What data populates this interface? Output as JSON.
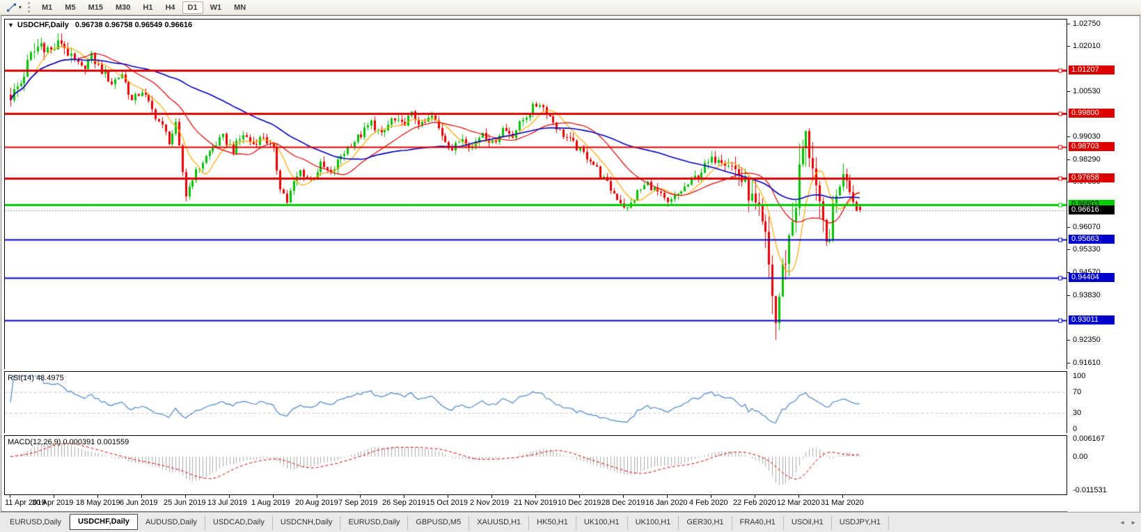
{
  "toolbar": {
    "timeframes": [
      "M1",
      "M5",
      "M15",
      "M30",
      "H1",
      "H4",
      "D1",
      "W1",
      "MN"
    ],
    "active_timeframe": "D1",
    "dropdown_caret": "▾"
  },
  "chart": {
    "symbol": "USDCHF,Daily",
    "ohlc": "0.96738 0.96758 0.96549 0.96616",
    "collapse_arrow": "▼"
  },
  "chart_data": {
    "type": "candlestick",
    "symbol": "USDCHF",
    "timeframe": "Daily",
    "open": 0.96738,
    "high": 0.96758,
    "low": 0.96549,
    "close": 0.96616,
    "candle_up_color": "#00c000",
    "candle_down_color": "#ee0000",
    "price_axis_labels": [
      "1.02750",
      "1.02010",
      "1.00530",
      "0.99030",
      "0.98290",
      "0.97550",
      "0.96070",
      "0.95330",
      "0.94570",
      "0.93830",
      "0.92350",
      "0.91610"
    ],
    "date_labels": [
      "11 Apr 2019",
      "30 Apr 2019",
      "18 May 2019",
      "6 Jun 2019",
      "25 Jun 2019",
      "13 Jul 2019",
      "1 Aug 2019",
      "20 Aug 2019",
      "7 Sep 2019",
      "26 Sep 2019",
      "15 Oct 2019",
      "2 Nov 2019",
      "21 Nov 2019",
      "10 Dec 2019",
      "28 Dec 2019",
      "16 Jan 2020",
      "4 Feb 2020",
      "22 Feb 2020",
      "12 Mar 2020",
      "31 Mar 2020"
    ],
    "tick_every_n_candles": 13,
    "candle_count": 253,
    "close_waypoints": [
      [
        0,
        1.0035
      ],
      [
        3,
        1.008
      ],
      [
        6,
        1.017
      ],
      [
        9,
        1.021
      ],
      [
        12,
        1.0185
      ],
      [
        15,
        1.0215
      ],
      [
        18,
        1.016
      ],
      [
        21,
        1.0125
      ],
      [
        24,
        1.0165
      ],
      [
        27,
        1.012
      ],
      [
        30,
        1.008
      ],
      [
        33,
        1.011
      ],
      [
        36,
        1.002
      ],
      [
        39,
        1.0055
      ],
      [
        42,
        0.999
      ],
      [
        45,
        0.9935
      ],
      [
        47,
        0.989
      ],
      [
        49,
        0.994
      ],
      [
        52,
        0.971
      ],
      [
        54,
        0.977
      ],
      [
        57,
        0.982
      ],
      [
        60,
        0.987
      ],
      [
        63,
        0.99
      ],
      [
        66,
        0.986
      ],
      [
        69,
        0.991
      ],
      [
        72,
        0.988
      ],
      [
        75,
        0.9905
      ],
      [
        78,
        0.9855
      ],
      [
        80,
        0.974
      ],
      [
        82,
        0.969
      ],
      [
        84,
        0.975
      ],
      [
        86,
        0.979
      ],
      [
        89,
        0.976
      ],
      [
        92,
        0.981
      ],
      [
        95,
        0.978
      ],
      [
        98,
        0.984
      ],
      [
        101,
        0.988
      ],
      [
        104,
        0.991
      ],
      [
        107,
        0.995
      ],
      [
        110,
        0.9905
      ],
      [
        113,
        0.996
      ],
      [
        116,
        0.994
      ],
      [
        119,
        0.9975
      ],
      [
        122,
        0.994
      ],
      [
        125,
        0.997
      ],
      [
        128,
        0.991
      ],
      [
        131,
        0.986
      ],
      [
        134,
        0.99
      ],
      [
        137,
        0.987
      ],
      [
        140,
        0.992
      ],
      [
        143,
        0.988
      ],
      [
        146,
        0.993
      ],
      [
        149,
        0.991
      ],
      [
        152,
        0.996
      ],
      [
        155,
        1.0
      ],
      [
        157,
        1.0015
      ],
      [
        160,
        0.997
      ],
      [
        163,
        0.992
      ],
      [
        166,
        0.989
      ],
      [
        169,
        0.9855
      ],
      [
        172,
        0.983
      ],
      [
        175,
        0.978
      ],
      [
        178,
        0.973
      ],
      [
        181,
        0.969
      ],
      [
        183,
        0.9665
      ],
      [
        186,
        0.972
      ],
      [
        189,
        0.975
      ],
      [
        192,
        0.972
      ],
      [
        195,
        0.968
      ],
      [
        198,
        0.9715
      ],
      [
        201,
        0.9745
      ],
      [
        204,
        0.978
      ],
      [
        207,
        0.9815
      ],
      [
        210,
        0.984
      ],
      [
        213,
        0.982
      ],
      [
        216,
        0.978
      ],
      [
        219,
        0.972
      ],
      [
        222,
        0.964
      ],
      [
        224,
        0.956
      ],
      [
        226,
        0.939
      ],
      [
        227,
        0.929
      ],
      [
        228,
        0.938
      ],
      [
        229,
        0.946
      ],
      [
        231,
        0.957
      ],
      [
        233,
        0.97
      ],
      [
        235,
        0.986
      ],
      [
        236,
        0.9895
      ],
      [
        238,
        0.982
      ],
      [
        240,
        0.965
      ],
      [
        242,
        0.954
      ],
      [
        244,
        0.965
      ],
      [
        246,
        0.976
      ],
      [
        248,
        0.9775
      ],
      [
        250,
        0.97
      ],
      [
        252,
        0.9662
      ]
    ],
    "spike_low": {
      "index": 227,
      "price": 0.9235
    },
    "spike_high": {
      "index": 236,
      "price": 0.9906
    },
    "levels": [
      {
        "label": "1.01207",
        "price": 1.01207,
        "color": "#dd0000",
        "text_color": "#ffffff",
        "line_width": 3,
        "style": "solid"
      },
      {
        "label": "0.99800",
        "price": 0.998,
        "color": "#dd0000",
        "text_color": "#ffffff",
        "line_width": 3,
        "style": "solid"
      },
      {
        "label": "0.98703",
        "price": 0.98703,
        "color": "#dd0000",
        "text_color": "#ffffff",
        "line_width": 2,
        "style": "solid"
      },
      {
        "label": "0.97658",
        "price": 0.97658,
        "color": "#dd0000",
        "text_color": "#ffffff",
        "line_width": 3,
        "style": "solid"
      },
      {
        "label": "0.96803",
        "price": 0.96803,
        "color": "#00cc00",
        "text_color": "#000000",
        "line_width": 3,
        "style": "solid"
      },
      {
        "label": "0.96616",
        "price": 0.96616,
        "color": "#000000",
        "text_color": "#ffffff",
        "line_width": 1,
        "style": "dotted",
        "line_color": "#9a9a9a",
        "current": true
      },
      {
        "label": "0.95663",
        "price": 0.95663,
        "color": "#0000cc",
        "text_color": "#ffffff",
        "line_width": 2,
        "style": "solid"
      },
      {
        "label": "0.94404",
        "price": 0.94404,
        "color": "#0000cc",
        "text_color": "#ffffff",
        "line_width": 2,
        "style": "solid"
      },
      {
        "label": "0.93011",
        "price": 0.93011,
        "color": "#0000cc",
        "text_color": "#ffffff",
        "line_width": 2,
        "style": "solid"
      }
    ],
    "moving_averages": [
      {
        "period": 8,
        "color": "#ffa800"
      },
      {
        "period": 21,
        "color": "#dd0000"
      },
      {
        "period": 55,
        "color": "#0000bb"
      }
    ],
    "rsi": {
      "label": "RSI(14) 48.4975",
      "period": 14,
      "value": 48.4975,
      "axis_labels": [
        "100",
        "70",
        "30",
        "0"
      ],
      "axis_values": [
        100,
        70,
        30,
        0
      ],
      "levels": [
        70,
        30
      ],
      "color": "#4c86c8"
    },
    "macd": {
      "label": "MACD(12,26,9) 0.000391 0.001559",
      "fast": 12,
      "slow": 26,
      "signal": 9,
      "value": 0.000391,
      "signal_value": 0.001559,
      "axis_labels": [
        "0.006167",
        "0.00",
        "-0.011531"
      ],
      "axis_values": [
        0.006167,
        0,
        -0.011531
      ],
      "hist_color": "#aaaaaa",
      "signal_color": "#dd0000"
    }
  },
  "tabbar": {
    "tabs": [
      "EURUSD,Daily",
      "USDCHF,Daily",
      "AUDUSD,Daily",
      "USDCAD,Daily",
      "USDCNH,Daily",
      "EURUSD,Daily",
      "GBPUSD,M5",
      "XAUUSD,H1",
      "HK50,H1",
      "UK100,H1",
      "UK100,H1",
      "GER30,H1",
      "FRA40,H1",
      "USOil,H1",
      "USDJPY,H1"
    ],
    "active_index": 1,
    "scroll_left_icon": "◄",
    "scroll_right_icon": "►"
  }
}
